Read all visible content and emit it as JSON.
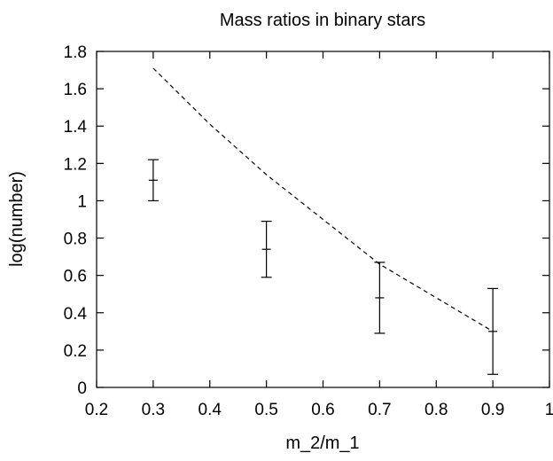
{
  "chart_data": {
    "type": "scatter",
    "title": "Mass ratios in binary stars",
    "xlabel": "m_2/m_1",
    "ylabel": "log(number)",
    "xlim": [
      0.2,
      1.0
    ],
    "ylim": [
      0,
      1.8
    ],
    "x_ticks": [
      "0.2",
      "0.3",
      "0.4",
      "0.5",
      "0.6",
      "0.7",
      "0.8",
      "0.9",
      "1"
    ],
    "y_ticks": [
      "0",
      "0.2",
      "0.4",
      "0.6",
      "0.8",
      "1",
      "1.2",
      "1.4",
      "1.6",
      "1.8"
    ],
    "grid": false,
    "legend": "none",
    "series": [
      {
        "style": "points-with-errorbars",
        "x": [
          0.3,
          0.5,
          0.7,
          0.9
        ],
        "y": [
          1.11,
          0.74,
          0.48,
          0.3
        ],
        "y_low": [
          1.0,
          0.59,
          0.29,
          0.07
        ],
        "y_high": [
          1.22,
          0.89,
          0.67,
          0.53
        ]
      },
      {
        "style": "dashed-line",
        "x": [
          0.3,
          0.4,
          0.5,
          0.6,
          0.7,
          0.8,
          0.9
        ],
        "y": [
          1.71,
          1.41,
          1.14,
          0.9,
          0.66,
          0.48,
          0.3
        ]
      }
    ]
  }
}
